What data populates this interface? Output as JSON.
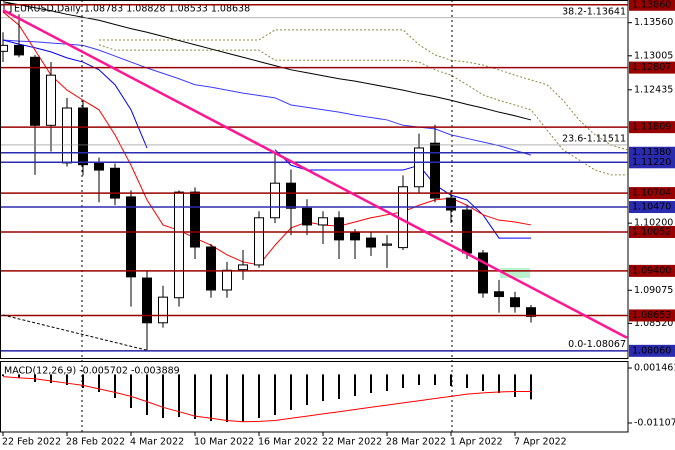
{
  "header": "EURUSD,Daily 1.08783 1.08828 1.08533 1.08638",
  "chart_data": [
    {
      "type": "candlestick",
      "categories": [
        "22 Feb 2022",
        null,
        null,
        null,
        "28 Feb 2022",
        null,
        null,
        null,
        "4 Mar 2022",
        null,
        null,
        null,
        "10 Mar 2022",
        null,
        null,
        null,
        "16 Mar 2022",
        null,
        null,
        null,
        "22 Mar 2022",
        null,
        null,
        null,
        "28 Mar 2022",
        null,
        null,
        null,
        "1 Apr 2022",
        null,
        null,
        null,
        "7 Apr 2022",
        null,
        null,
        null,
        null,
        null,
        null,
        null
      ],
      "open": [
        1.1308,
        1.1318,
        1.1298,
        1.1184,
        1.1121,
        1.1213,
        1.1121,
        1.1112,
        1.1064,
        1.0928,
        1.0853,
        1.0895,
        1.1072,
        1.098,
        1.0908,
        1.0942,
        1.095,
        1.1029,
        1.1087,
        1.1045,
        1.1017,
        1.1029,
        1.1005,
        1.0995,
        1.0983,
        1.0979,
        1.1081,
        1.1154,
        1.1062,
        1.1042,
        1.097,
        1.0905,
        1.0895,
        1.08783,
        null,
        null,
        null,
        null,
        null,
        null
      ],
      "high": [
        1.134,
        1.137,
        1.1302,
        1.129,
        1.123,
        1.1225,
        1.113,
        1.112,
        1.1075,
        1.094,
        1.0915,
        1.1075,
        1.108,
        1.0985,
        1.0955,
        1.0975,
        1.104,
        1.114,
        1.111,
        1.106,
        1.104,
        1.104,
        1.101,
        1.1005,
        1.1,
        1.11,
        1.117,
        1.1185,
        1.1075,
        1.105,
        1.0975,
        1.0925,
        1.0905,
        1.08828,
        null,
        null,
        null,
        null,
        null,
        null
      ],
      "low": [
        1.129,
        1.1298,
        1.1101,
        1.114,
        1.1115,
        1.11,
        1.1055,
        1.105,
        1.088,
        1.0806,
        1.0845,
        1.088,
        1.096,
        1.0895,
        1.0895,
        1.0925,
        1.0945,
        1.102,
        1.1,
        1.1,
        1.0985,
        1.096,
        1.096,
        1.0965,
        1.0945,
        1.0975,
        1.107,
        1.1055,
        1.102,
        1.096,
        1.0895,
        1.087,
        1.087,
        1.08533,
        null,
        null,
        null,
        null,
        null,
        null
      ],
      "close": [
        1.1318,
        1.1302,
        1.1184,
        1.1268,
        1.1213,
        1.1118,
        1.1109,
        1.1062,
        1.093,
        1.0853,
        1.0896,
        1.1072,
        1.098,
        1.0908,
        1.0941,
        1.095,
        1.1029,
        1.1087,
        1.1045,
        1.1017,
        1.1029,
        1.0992,
        1.0992,
        1.098,
        1.0985,
        1.1081,
        1.1146,
        1.1062,
        1.1042,
        1.097,
        1.0903,
        1.0897,
        1.088,
        1.08638,
        null,
        null,
        null,
        null,
        null,
        null
      ],
      "series": [
        {
          "color": "#000000",
          "values": [
            1.1391,
            1.1386,
            1.1381,
            1.1376,
            1.137,
            1.1365,
            1.136,
            1.1353,
            1.1346,
            1.134,
            1.1333,
            1.1326,
            1.1319,
            1.1312,
            1.1305,
            1.1298,
            1.1291,
            1.1284,
            1.1277,
            1.1272,
            1.1267,
            1.1262,
            1.1258,
            1.1253,
            1.1248,
            1.1243,
            1.1237,
            1.1232,
            1.1226,
            1.1219,
            1.1213,
            1.1206,
            1.12,
            1.1193,
            null,
            null,
            null,
            null,
            null,
            null
          ]
        },
        {
          "color": "#3c3cff",
          "values": [
            1.1327,
            1.1325,
            1.1324,
            1.1322,
            1.132,
            1.1318,
            1.131,
            1.13,
            1.129,
            1.128,
            1.1271,
            1.1262,
            1.1252,
            1.1248,
            1.1243,
            1.1238,
            1.1234,
            1.123,
            1.1218,
            1.1214,
            1.121,
            1.1206,
            1.1201,
            1.1197,
            1.1193,
            1.1184,
            1.1181,
            1.1178,
            1.1168,
            1.1162,
            1.1156,
            1.115,
            1.1142,
            1.1134,
            null,
            null,
            null,
            null,
            null,
            null
          ]
        },
        {
          "color": "#0000ff",
          "values": [
            1.1327,
            1.132,
            1.1314,
            1.1307,
            1.1297,
            1.129,
            1.1277,
            1.1252,
            1.121,
            1.1146,
            null,
            null,
            null,
            null,
            null,
            null,
            null,
            1.1143,
            1.1117,
            1.1109,
            1.1109,
            1.1109,
            1.1109,
            1.1109,
            1.1109,
            1.1109,
            1.1117,
            1.1084,
            1.1067,
            1.1059,
            1.1034,
            1.0995,
            1.0995,
            1.0995,
            null,
            null,
            null,
            null,
            null,
            null
          ]
        },
        {
          "color": "#ff0000",
          "values": [
            1.1374,
            1.1352,
            1.131,
            1.1268,
            1.1243,
            1.1226,
            1.121,
            1.1168,
            1.1117,
            1.1059,
            1.1017,
            1.1008,
            1.0995,
            1.0983,
            1.0967,
            1.0955,
            1.095,
            1.0983,
            1.1012,
            1.1022,
            1.1017,
            1.1015,
            1.1022,
            1.1029,
            1.1034,
            1.1039,
            1.105,
            1.1059,
            1.1062,
            1.105,
            1.1034,
            1.1025,
            1.1022,
            1.1017,
            null,
            null,
            null,
            null,
            null,
            null
          ]
        }
      ],
      "cloud": {
        "color": "#8b8b3a",
        "upper": [
          null,
          null,
          null,
          null,
          null,
          null,
          1.1327,
          1.1327,
          1.1327,
          1.1327,
          1.1327,
          1.1327,
          1.1327,
          1.1327,
          1.1327,
          1.1327,
          1.1327,
          1.1344,
          1.1344,
          1.1344,
          1.1344,
          1.1344,
          1.1344,
          1.1344,
          1.1344,
          1.1344,
          1.1319,
          1.1302,
          1.1293,
          1.129,
          1.1285,
          1.1277,
          1.1268,
          1.126,
          1.1252,
          1.1226,
          1.1193,
          1.1168,
          1.1151,
          1.1143
        ],
        "lower": [
          null,
          null,
          null,
          null,
          null,
          null,
          1.1319,
          1.131,
          1.131,
          1.131,
          1.131,
          1.131,
          1.131,
          1.131,
          1.131,
          1.131,
          1.131,
          1.1293,
          1.1293,
          1.1293,
          1.1293,
          1.1293,
          1.1293,
          1.1293,
          1.1293,
          1.1293,
          1.129,
          1.1277,
          1.1268,
          1.1252,
          1.1235,
          1.1226,
          1.1218,
          1.121,
          1.1176,
          1.1143,
          1.1126,
          1.1109,
          1.1101,
          1.1101
        ]
      },
      "trendlines": [
        {
          "color": "#ff1493",
          "x": [
            0,
            39
          ],
          "y": [
            1.1377,
            1.0828
          ]
        },
        {
          "color": "#000000",
          "x": [
            0,
            9
          ],
          "y": [
            1.0866,
            1.0807
          ]
        }
      ],
      "levels": [
        {
          "value": 1.1386,
          "label": "1.13860",
          "color": "#990000"
        },
        {
          "value": 1.12807,
          "label": "1.12807",
          "color": "#990000"
        },
        {
          "value": 1.11809,
          "label": "1.11809",
          "color": "#990000"
        },
        {
          "value": 1.1138,
          "label": "1.11380",
          "color": "#2b2bb0"
        },
        {
          "value": 1.1122,
          "label": "1.11220",
          "color": "#2b2bb0"
        },
        {
          "value": 1.10704,
          "label": "1.10704",
          "color": "#990000"
        },
        {
          "value": 1.1047,
          "label": "1.10470",
          "color": "#2b2bb0"
        },
        {
          "value": 1.10052,
          "label": "1.10052",
          "color": "#990000"
        },
        {
          "value": 1.094,
          "label": "1.09400",
          "color": "#990000"
        },
        {
          "value": 1.08653,
          "label": "1.08653",
          "color": "#990000"
        },
        {
          "value": 1.0806,
          "label": "1.08060",
          "color": "#2b2bb0"
        }
      ],
      "fib_levels": [
        {
          "value": 1.13641,
          "label": "38.2-1.13641"
        },
        {
          "value": 1.11511,
          "label": "23.6-1.11511"
        },
        {
          "value": 1.08067,
          "label": "0.0-1.08067"
        }
      ],
      "ylim": [
        1.0794,
        1.1394
      ],
      "yticks": [
        {
          "value": 1.1356,
          "label": "1.13560"
        },
        {
          "value": 1.13005,
          "label": "1.13005"
        },
        {
          "value": 1.12435,
          "label": "1.12435"
        },
        {
          "value": 1.102,
          "label": "1.10200"
        },
        {
          "value": 1.09075,
          "label": "1.09075"
        },
        {
          "value": 1.0852,
          "label": "1.08520"
        }
      ]
    },
    {
      "type": "macd",
      "title": "MACD(12,26,9) -0.005702 -0.003889",
      "values": [
        -0.00036,
        -0.00082,
        -0.00173,
        -0.00196,
        -0.00242,
        -0.0031,
        -0.00401,
        -0.00538,
        -0.00766,
        -0.00925,
        -0.00994,
        -0.00971,
        -0.01017,
        -0.01062,
        -0.01085,
        -0.01085,
        -0.00994,
        -0.00925,
        -0.00811,
        -0.00698,
        -0.00606,
        -0.00561,
        -0.00492,
        -0.00424,
        -0.00378,
        -0.0031,
        -0.00242,
        -0.00242,
        -0.00264,
        -0.0031,
        -0.00378,
        -0.00424,
        -0.00515,
        -0.005702
      ],
      "signal": [
        -0.0005,
        -0.0008,
        -0.001,
        -0.0015,
        -0.002,
        -0.0025,
        -0.0033,
        -0.0041,
        -0.005,
        -0.0062,
        -0.0075,
        -0.0085,
        -0.0095,
        -0.01,
        -0.0105,
        -0.0108,
        -0.0107,
        -0.0105,
        -0.01,
        -0.0095,
        -0.009,
        -0.0085,
        -0.008,
        -0.0075,
        -0.007,
        -0.0065,
        -0.006,
        -0.0055,
        -0.005,
        -0.0045,
        -0.0042,
        -0.004,
        -0.0039,
        -0.003889
      ],
      "bar_color": "#000000",
      "signal_color": "#ff0000",
      "ylim": [
        -0.01313,
        0.00283
      ],
      "yticks": [
        0.001461,
        -0.011075
      ]
    }
  ]
}
